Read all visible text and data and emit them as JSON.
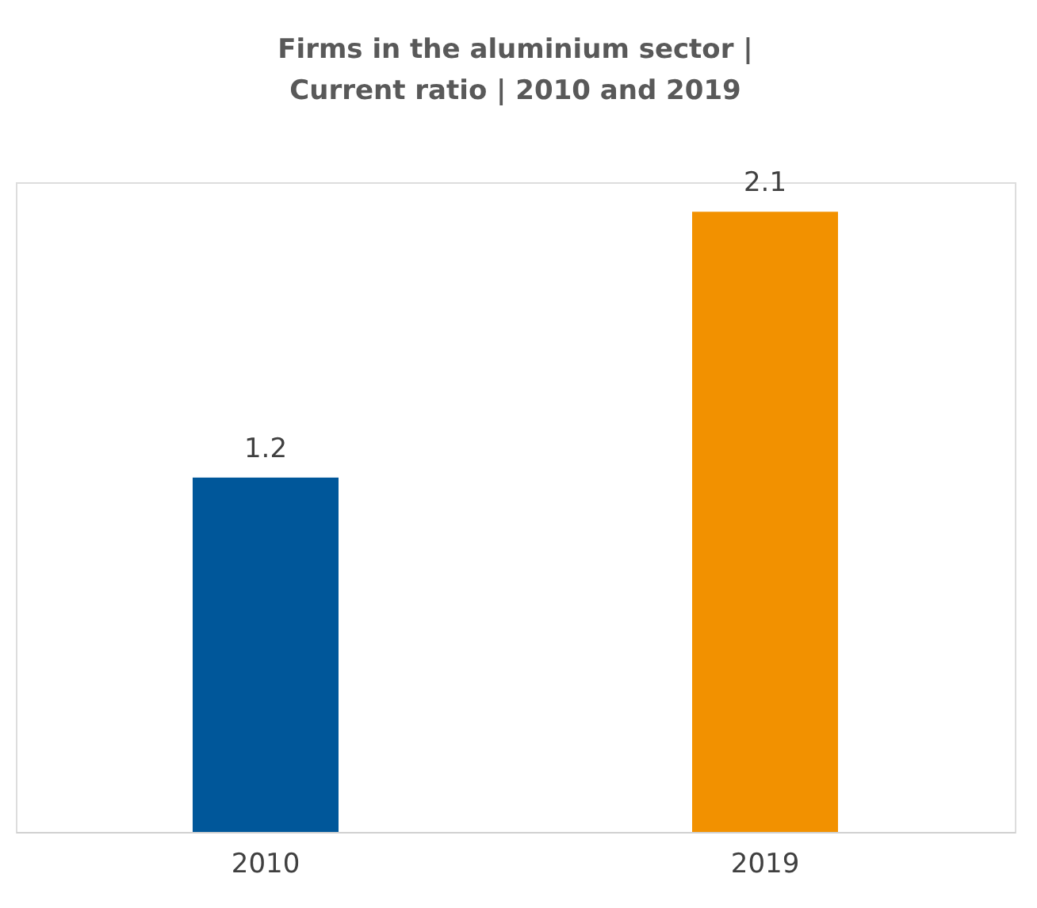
{
  "chart_data": {
    "type": "bar",
    "title": "Firms in the aluminium  sector |\nCurrent ratio | 2010 and 2019",
    "categories": [
      "2010",
      "2019"
    ],
    "values": [
      1.2,
      2.1
    ],
    "colors": [
      "#00579a",
      "#f29100"
    ],
    "data_labels": true,
    "grid": false
  }
}
